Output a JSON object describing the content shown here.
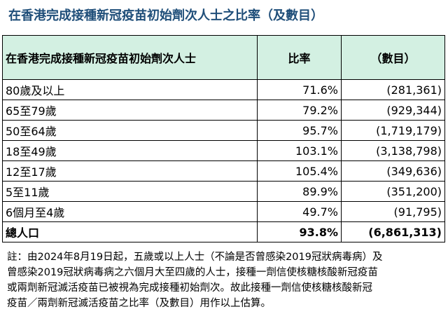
{
  "title": "在香港完成接種新冠疫苗初始劑次人士之比率（及數目）",
  "table": {
    "headers": {
      "group": "在香港完成接種新冠疫苗初始劑次人士",
      "rate": "比率",
      "count": "（數目）"
    },
    "rows": [
      {
        "group": "80歲及以上",
        "rate": "71.6%",
        "count": "(281,361)"
      },
      {
        "group": "65至79歲",
        "rate": "79.2%",
        "count": "(929,344)"
      },
      {
        "group": "50至64歲",
        "rate": "95.7%",
        "count": "(1,719,179)"
      },
      {
        "group": "18至49歲",
        "rate": "103.1%",
        "count": "(3,138,798)"
      },
      {
        "group": "12至17歲",
        "rate": "105.4%",
        "count": "(349,636)"
      },
      {
        "group": "5至11歲",
        "rate": "89.9%",
        "count": "(351,200)"
      },
      {
        "group": "6個月至4歲",
        "rate": "49.7%",
        "count": "(91,795)"
      }
    ],
    "total": {
      "group": "總人口",
      "rate": "93.8%",
      "count": "(6,861,313)"
    }
  },
  "note": {
    "lines": [
      "註：由2024年8月19日起，五歲或以上人士（不論是否曾感染2019冠狀病毒病）及",
      "曾感染2019冠狀病毒病之六個月大至四歲的人士，接種一劑信使核糖核酸新冠疫苗",
      "或兩劑新冠滅活疫苗已被視為完成接種初始劑次。故此接種一劑信使核糖核酸新冠",
      "疫苗／兩劑新冠滅活疫苗之比率（及數目）用作以上估算。"
    ]
  },
  "colors": {
    "title": "#1f4e79",
    "header_bg": "#d3f0e2"
  }
}
